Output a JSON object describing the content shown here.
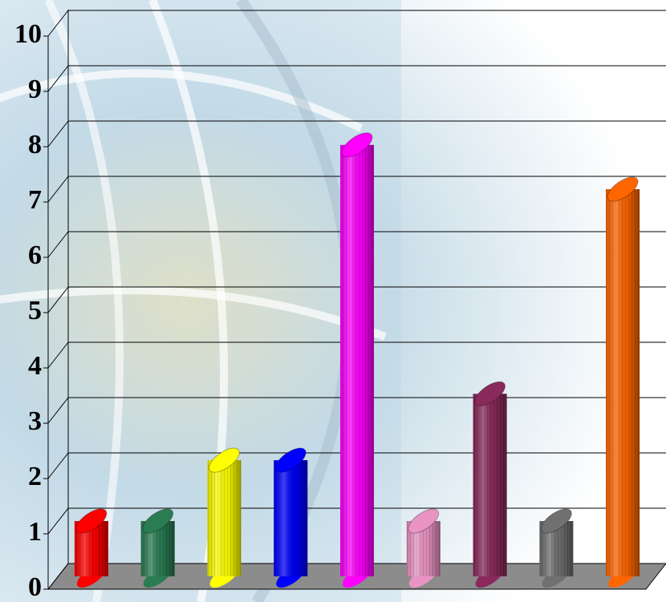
{
  "chart_data": {
    "type": "bar3d",
    "categories": [
      null,
      null,
      null,
      null,
      null,
      null,
      null,
      null,
      null
    ],
    "values": [
      1,
      1,
      2.1,
      2.1,
      7.8,
      1,
      3.3,
      1,
      7
    ],
    "colors": [
      "#ff0000",
      "#2a7d52",
      "#ffff00",
      "#0000ff",
      "#ff00ff",
      "#ea94c4",
      "#8a2a5c",
      "#707070",
      "#ff6600"
    ],
    "ylim": [
      0,
      10
    ],
    "yticks": [
      0,
      1,
      2,
      3,
      4,
      5,
      6,
      7,
      8,
      9,
      10
    ],
    "grid": true
  }
}
